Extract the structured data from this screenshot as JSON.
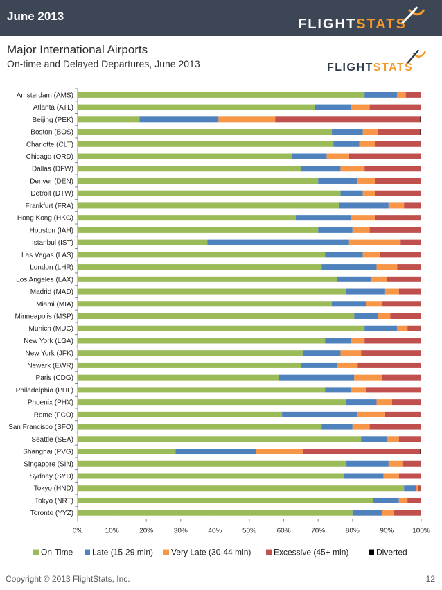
{
  "header": {
    "date": "June 2013",
    "brand_flight": "FLIGHT",
    "brand_stats": "STATS"
  },
  "title": "Major International Airports",
  "subtitle": "On-time and Delayed Departures, June 2013",
  "footer": {
    "copyright": "Copyright © 2013 FlightStats, Inc.",
    "page": "12"
  },
  "colors": {
    "on_time": "#9bbb59",
    "late": "#4f81bd",
    "very_late": "#f79646",
    "excessive": "#c0504d",
    "diverted": "#000000",
    "brand_orange": "#f39a2b"
  },
  "chart_data": {
    "type": "bar",
    "orientation": "horizontal",
    "stacked": "percent",
    "xlim": [
      0,
      100
    ],
    "x_ticks": [
      "0%",
      "10%",
      "20%",
      "30%",
      "40%",
      "50%",
      "60%",
      "70%",
      "80%",
      "90%",
      "100%"
    ],
    "legend_position": "bottom",
    "categories": [
      "Amsterdam (AMS)",
      "Atlanta (ATL)",
      "Beijing (PEK)",
      "Boston (BOS)",
      "Charlotte (CLT)",
      "Chicago (ORD)",
      "Dallas (DFW)",
      "Denver (DEN)",
      "Detroit (DTW)",
      "Frankfurt (FRA)",
      "Hong Kong (HKG)",
      "Houston (IAH)",
      "Istanbul (IST)",
      "Las Vegas (LAS)",
      "London (LHR)",
      "Los Angeles (LAX)",
      "Madrid (MAD)",
      "Miami (MIA)",
      "Minneapolis (MSP)",
      "Munich (MUC)",
      "New York (LGA)",
      "New York (JFK)",
      "Newark (EWR)",
      "Paris (CDG)",
      "Philadelphia (PHL)",
      "Phoenix (PHX)",
      "Rome (FCO)",
      "San Francisco (SFO)",
      "Seattle (SEA)",
      "Shanghai (PVG)",
      "Singapore (SIN)",
      "Sydney (SYD)",
      "Tokyo (HND)",
      "Tokyo (NRT)",
      "Toronto (YYZ)"
    ],
    "series": [
      {
        "name": "On-Time",
        "color": "#9bbb59",
        "values": [
          83.5,
          69.0,
          18.0,
          74.0,
          74.5,
          62.5,
          65.0,
          70.0,
          76.5,
          76.0,
          63.5,
          70.0,
          37.8,
          72.0,
          71.0,
          75.5,
          78.0,
          74.0,
          80.5,
          83.5,
          72.0,
          65.5,
          65.0,
          58.5,
          72.0,
          78.0,
          59.5,
          71.0,
          82.5,
          28.5,
          78.0,
          77.5,
          95.0,
          86.0,
          80.0
        ]
      },
      {
        "name": "Late (15-29 min)",
        "color": "#4f81bd",
        "values": [
          9.5,
          10.5,
          23.0,
          9.0,
          7.5,
          10.0,
          11.5,
          11.5,
          6.5,
          14.5,
          16.0,
          10.0,
          41.2,
          11.0,
          16.0,
          10.0,
          11.5,
          10.0,
          7.0,
          9.5,
          7.5,
          11.0,
          10.5,
          22.0,
          7.5,
          9.0,
          22.0,
          9.0,
          7.5,
          23.5,
          12.5,
          11.5,
          3.5,
          7.5,
          8.5
        ]
      },
      {
        "name": "Very Late (30-44 min)",
        "color": "#f79646",
        "values": [
          2.5,
          5.5,
          16.5,
          4.5,
          4.5,
          6.5,
          7.0,
          5.0,
          3.5,
          4.5,
          7.0,
          5.0,
          15.0,
          5.0,
          6.0,
          4.5,
          4.0,
          4.5,
          3.5,
          3.0,
          4.0,
          6.0,
          6.0,
          8.0,
          4.5,
          4.5,
          8.0,
          5.0,
          3.5,
          13.5,
          4.0,
          4.5,
          0.5,
          2.5,
          3.5
        ]
      },
      {
        "name": "Excessive (45+ min)",
        "color": "#c0504d",
        "values": [
          4.3,
          14.8,
          42.2,
          12.2,
          13.3,
          20.8,
          16.3,
          13.3,
          13.3,
          4.8,
          13.3,
          14.8,
          5.8,
          11.8,
          6.8,
          9.8,
          6.3,
          11.3,
          8.8,
          3.8,
          16.3,
          17.3,
          18.3,
          11.3,
          15.8,
          8.3,
          10.3,
          14.8,
          6.3,
          34.2,
          5.3,
          6.3,
          0.8,
          3.8,
          7.8
        ]
      },
      {
        "name": "Diverted",
        "color": "#000000",
        "values": [
          0.2,
          0.2,
          0.3,
          0.3,
          0.2,
          0.2,
          0.2,
          0.2,
          0.2,
          0.2,
          0.2,
          0.2,
          0.2,
          0.2,
          0.2,
          0.2,
          0.2,
          0.2,
          0.2,
          0.2,
          0.2,
          0.2,
          0.2,
          0.2,
          0.2,
          0.2,
          0.2,
          0.2,
          0.2,
          0.3,
          0.2,
          0.2,
          0.2,
          0.2,
          0.2
        ]
      }
    ]
  }
}
